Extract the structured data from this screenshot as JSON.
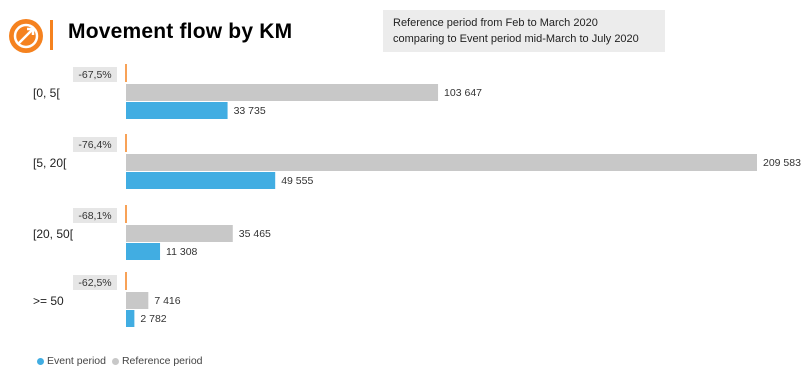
{
  "header": {
    "title": "Movement flow by KM",
    "note_line1": "Reference period from Feb to March 2020",
    "note_line2": "comparing to Event period mid-March to July 2020",
    "accent_color": "#F5821F"
  },
  "legend": {
    "event_label": "Event period",
    "reference_label": "Reference period"
  },
  "chart_data": {
    "type": "bar",
    "orientation": "horizontal",
    "categories": [
      "[0, 5[",
      "[5, 20[",
      "[20, 50[",
      ">= 50"
    ],
    "series": [
      {
        "name": "Reference period",
        "values": [
          103647,
          209583,
          35465,
          7416
        ],
        "labels": [
          "103 647",
          "209 583",
          "35 465",
          "7 416"
        ],
        "color": "#c8c8c8"
      },
      {
        "name": "Event period",
        "values": [
          33735,
          49555,
          11308,
          2782
        ],
        "labels": [
          "33 735",
          "49 555",
          "11 308",
          "2 782"
        ],
        "color": "#41ade2"
      }
    ],
    "changes": [
      "-67,5%",
      "-76,4%",
      "-68,1%",
      "-62,5%"
    ],
    "change_marker_color": "#F5821F",
    "change_badge_color": "#e6e6e6",
    "legend_position": "bottom-left",
    "grid": false
  }
}
